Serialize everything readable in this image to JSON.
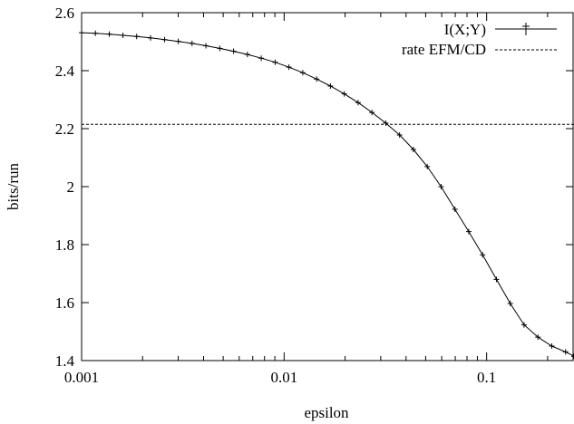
{
  "chart_data": {
    "type": "line",
    "title": "",
    "xlabel": "epsilon",
    "ylabel": "bits/run",
    "xscale": "log",
    "xlim": [
      0.001,
      0.27
    ],
    "ylim": [
      1.4,
      2.6
    ],
    "xticks": [
      0.001,
      0.01,
      0.1
    ],
    "xtick_labels": [
      "0.001",
      "0.01",
      "0.1"
    ],
    "yticks": [
      1.4,
      1.6,
      1.8,
      2.0,
      2.2,
      2.4,
      2.6
    ],
    "ytick_labels": [
      "1.4",
      "1.6",
      "1.8",
      "2",
      "2.2",
      "2.4",
      "2.6"
    ],
    "grid": false,
    "legend_position": "top-right",
    "series": [
      {
        "name": "I(X;Y)",
        "style": "solid with plus markers",
        "x": [
          0.001,
          0.00117,
          0.00137,
          0.0016,
          0.00187,
          0.00219,
          0.00257,
          0.003,
          0.00351,
          0.00411,
          0.00481,
          0.00563,
          0.00659,
          0.00771,
          0.00903,
          0.01056,
          0.01236,
          0.01447,
          0.01693,
          0.01981,
          0.02319,
          0.02714,
          0.03176,
          0.03717,
          0.0435,
          0.05091,
          0.05958,
          0.06973,
          0.0816,
          0.0955,
          0.11177,
          0.1308,
          0.15308,
          0.17915,
          0.20966,
          0.24537,
          0.27
        ],
        "y": [
          2.531,
          2.529,
          2.526,
          2.522,
          2.518,
          2.513,
          2.507,
          2.501,
          2.494,
          2.486,
          2.477,
          2.467,
          2.456,
          2.443,
          2.429,
          2.412,
          2.393,
          2.371,
          2.347,
          2.32,
          2.29,
          2.256,
          2.219,
          2.178,
          2.128,
          2.069,
          2.0,
          1.922,
          1.845,
          1.765,
          1.68,
          1.597,
          1.523,
          1.481,
          1.45,
          1.43,
          1.415
        ]
      },
      {
        "name": "rate EFM/CD",
        "style": "dashed",
        "x": [
          0.001,
          0.27
        ],
        "y": [
          2.215,
          2.215
        ]
      }
    ]
  },
  "colors": {
    "axes": "#000000",
    "series_line": "#000000",
    "background": "#ffffff"
  }
}
